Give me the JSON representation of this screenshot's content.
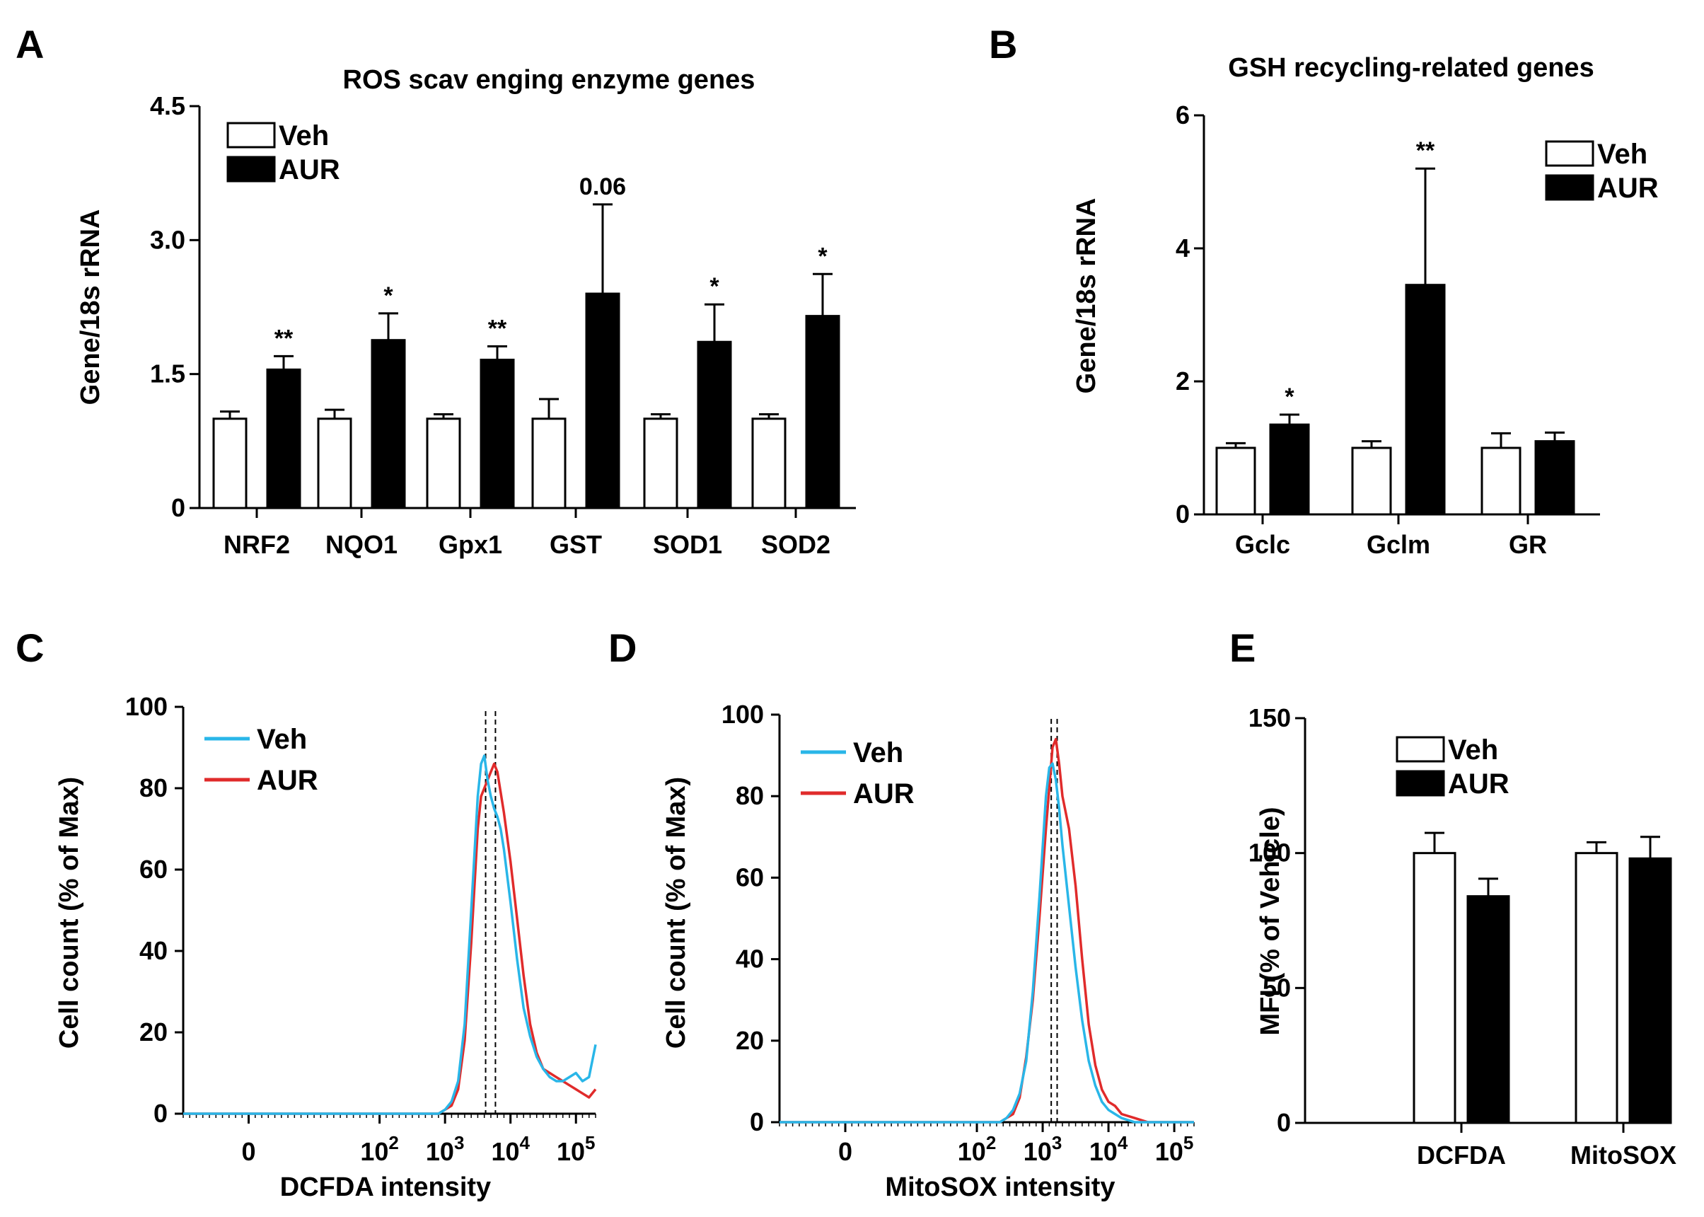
{
  "colors": {
    "veh_fill": "#ffffff",
    "aur_fill": "#000000",
    "veh_line": "#29b6e8",
    "aur_line": "#e02b2b",
    "axis": "#000000"
  },
  "chart_data": [
    {
      "panel": "A",
      "type": "bar",
      "title": "ROS scav enging enzyme genes",
      "ylabel": "Gene/18s rRNA",
      "xlabel": "",
      "ylim": [
        0,
        4.5
      ],
      "yticks": [
        "0",
        "1.5",
        "3.0",
        "4.5"
      ],
      "ytick_values": [
        0,
        1.5,
        3.0,
        4.5
      ],
      "categories": [
        "NRF2",
        "NQO1",
        "Gpx1",
        "GST",
        "SOD1",
        "SOD2"
      ],
      "series": [
        {
          "name": "Veh",
          "values": [
            1.0,
            1.0,
            1.0,
            1.0,
            1.0,
            1.0
          ],
          "errors": [
            0.08,
            0.1,
            0.05,
            0.22,
            0.05,
            0.05
          ]
        },
        {
          "name": "AUR",
          "values": [
            1.55,
            1.88,
            1.66,
            2.4,
            1.86,
            2.15
          ],
          "errors": [
            0.15,
            0.3,
            0.15,
            1.0,
            0.42,
            0.47
          ]
        }
      ],
      "annotations": [
        "**",
        "*",
        "**",
        "0.06",
        "*",
        "*"
      ],
      "legend": [
        "Veh",
        "AUR"
      ]
    },
    {
      "panel": "B",
      "type": "bar",
      "title": "GSH recycling-related genes",
      "ylabel": "Gene/18s rRNA",
      "xlabel": "",
      "ylim": [
        0,
        6
      ],
      "yticks": [
        "0",
        "2",
        "4",
        "6"
      ],
      "ytick_values": [
        0,
        2,
        4,
        6
      ],
      "categories": [
        "Gclc",
        "Gclm",
        "GR"
      ],
      "series": [
        {
          "name": "Veh",
          "values": [
            1.0,
            1.0,
            1.0
          ],
          "errors": [
            0.07,
            0.1,
            0.22
          ]
        },
        {
          "name": "AUR",
          "values": [
            1.35,
            3.45,
            1.1
          ],
          "errors": [
            0.15,
            1.75,
            0.13
          ]
        }
      ],
      "annotations": [
        "*",
        "**",
        ""
      ],
      "legend": [
        "Veh",
        "AUR"
      ]
    },
    {
      "panel": "C",
      "type": "line",
      "title": "",
      "ylabel": "Cell count (% of Max)",
      "xlabel": "DCFDA intensity",
      "ylim": [
        0,
        100
      ],
      "yticks": [
        "0",
        "20",
        "40",
        "60",
        "80",
        "100"
      ],
      "ytick_values": [
        0,
        20,
        40,
        60,
        80,
        100
      ],
      "xticks": [
        {
          "label": "0",
          "sup": "",
          "pos": 0
        },
        {
          "label": "10",
          "sup": "2",
          "pos": 2
        },
        {
          "label": "10",
          "sup": "3",
          "pos": 3
        },
        {
          "label": "10",
          "sup": "4",
          "pos": 4
        },
        {
          "label": "10",
          "sup": "5",
          "pos": 5
        }
      ],
      "xlim": [
        -1.0,
        5.3
      ],
      "medians": [
        3.62,
        3.77
      ],
      "series": [
        {
          "name": "Veh",
          "x": [
            -1.0,
            2.9,
            3.0,
            3.1,
            3.2,
            3.3,
            3.4,
            3.5,
            3.55,
            3.6,
            3.65,
            3.7,
            3.75,
            3.8,
            3.85,
            3.9,
            4.0,
            4.1,
            4.2,
            4.3,
            4.4,
            4.5,
            4.6,
            4.7,
            4.8,
            4.9,
            5.0,
            5.1,
            5.2,
            5.3
          ],
          "y": [
            0,
            0,
            1,
            3,
            8,
            22,
            50,
            78,
            86,
            88,
            82,
            78,
            75,
            73,
            70,
            65,
            52,
            38,
            26,
            19,
            14,
            11,
            9,
            8,
            8,
            9,
            10,
            8,
            9,
            17
          ]
        },
        {
          "name": "AUR",
          "x": [
            -1.0,
            2.9,
            3.0,
            3.1,
            3.2,
            3.3,
            3.4,
            3.5,
            3.55,
            3.6,
            3.65,
            3.7,
            3.75,
            3.8,
            3.85,
            3.9,
            4.0,
            4.1,
            4.2,
            4.3,
            4.4,
            4.5,
            4.6,
            4.7,
            4.8,
            4.9,
            5.0,
            5.1,
            5.2,
            5.3
          ],
          "y": [
            0,
            0,
            1,
            2,
            6,
            18,
            42,
            70,
            78,
            80,
            82,
            84,
            86,
            84,
            79,
            74,
            62,
            48,
            34,
            22,
            15,
            11,
            10,
            9,
            8,
            7,
            6,
            5,
            4,
            6
          ]
        }
      ],
      "legend": [
        "Veh",
        "AUR"
      ]
    },
    {
      "panel": "D",
      "type": "line",
      "title": "",
      "ylabel": "Cell count (% of Max)",
      "xlabel": "MitoSOX intensity",
      "ylim": [
        0,
        100
      ],
      "yticks": [
        "0",
        "20",
        "40",
        "60",
        "80",
        "100"
      ],
      "ytick_values": [
        0,
        20,
        40,
        60,
        80,
        100
      ],
      "xticks": [
        {
          "label": "0",
          "sup": "",
          "pos": 0
        },
        {
          "label": "10",
          "sup": "2",
          "pos": 2
        },
        {
          "label": "10",
          "sup": "3",
          "pos": 3
        },
        {
          "label": "10",
          "sup": "4",
          "pos": 4
        },
        {
          "label": "10",
          "sup": "5",
          "pos": 5
        }
      ],
      "xlim": [
        -1.0,
        5.3
      ],
      "medians": [
        3.13,
        3.22
      ],
      "series": [
        {
          "name": "Veh",
          "x": [
            -1.0,
            2.35,
            2.45,
            2.55,
            2.65,
            2.75,
            2.85,
            2.95,
            3.05,
            3.1,
            3.15,
            3.2,
            3.25,
            3.3,
            3.4,
            3.5,
            3.6,
            3.7,
            3.8,
            3.9,
            4.0,
            4.1,
            4.2,
            4.4,
            4.6,
            4.9,
            5.3
          ],
          "y": [
            0,
            0,
            1,
            3,
            7,
            15,
            32,
            55,
            80,
            87,
            88,
            84,
            77,
            68,
            53,
            38,
            25,
            15,
            9,
            5,
            3,
            2,
            1,
            0,
            0,
            0,
            0
          ]
        },
        {
          "name": "AUR",
          "x": [
            -1.0,
            2.35,
            2.45,
            2.55,
            2.65,
            2.75,
            2.85,
            2.95,
            3.05,
            3.1,
            3.15,
            3.2,
            3.25,
            3.3,
            3.4,
            3.5,
            3.6,
            3.7,
            3.8,
            3.9,
            4.0,
            4.1,
            4.2,
            4.4,
            4.6,
            4.9,
            5.3
          ],
          "y": [
            0,
            0,
            1,
            2,
            6,
            16,
            30,
            50,
            72,
            82,
            92,
            94,
            88,
            80,
            72,
            58,
            40,
            24,
            14,
            8,
            5,
            4,
            2,
            1,
            0,
            0,
            0
          ]
        }
      ],
      "legend": [
        "Veh",
        "AUR"
      ]
    },
    {
      "panel": "E",
      "type": "bar",
      "title": "",
      "ylabel": "MFI (% of Vehicle)",
      "xlabel": "",
      "ylim": [
        0,
        150
      ],
      "yticks": [
        "0",
        "50",
        "100",
        "150"
      ],
      "ytick_values": [
        0,
        50,
        100,
        150
      ],
      "categories": [
        "DCFDA",
        "MitoSOX"
      ],
      "series": [
        {
          "name": "Veh",
          "values": [
            100,
            100
          ],
          "errors": [
            7.5,
            4
          ]
        },
        {
          "name": "AUR",
          "values": [
            84,
            98
          ],
          "errors": [
            6.5,
            8
          ]
        }
      ],
      "annotations": [
        "",
        ""
      ],
      "legend": [
        "Veh",
        "AUR"
      ]
    }
  ],
  "panel_letters": [
    "A",
    "B",
    "C",
    "D",
    "E"
  ]
}
